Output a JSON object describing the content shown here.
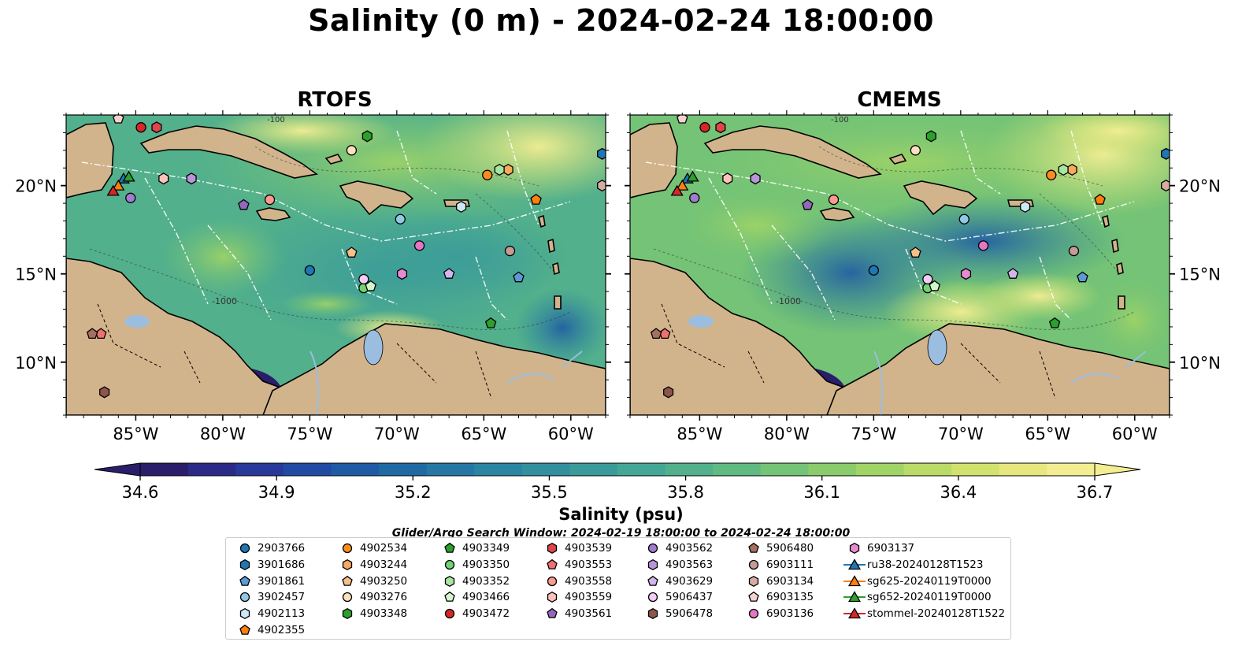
{
  "title": "Salinity (0 m) - 2024-02-24 18:00:00",
  "panels": [
    {
      "title": "RTOFS"
    },
    {
      "title": "CMEMS"
    }
  ],
  "lon_ticks": [
    "85°W",
    "80°W",
    "75°W",
    "70°W",
    "65°W",
    "60°W"
  ],
  "lat_ticks": [
    "20°N",
    "15°N",
    "10°N"
  ],
  "contour_labels": [
    "-100",
    "-1000"
  ],
  "colorbar": {
    "label": "Salinity (psu)",
    "ticks": [
      "34.6",
      "34.9",
      "35.2",
      "35.5",
      "35.8",
      "36.1",
      "36.4",
      "36.7"
    ],
    "range": [
      34.6,
      36.7
    ],
    "colors": [
      "#2a1d6a",
      "#2b2a86",
      "#28399a",
      "#214aa3",
      "#1f5aa4",
      "#206aa4",
      "#2677a3",
      "#2b84a1",
      "#32909e",
      "#3a9b9a",
      "#44a694",
      "#52b08c",
      "#61ba82",
      "#74c376",
      "#8acc6b",
      "#a1d466",
      "#badb67",
      "#d2e26f",
      "#e6e87f",
      "#f4ee93"
    ]
  },
  "search_window": "Glider/Argo Search Window: 2024-02-19 18:00:00 to 2024-02-24 18:00:00",
  "legend": [
    {
      "label": "2903766",
      "marker": "circle",
      "color": "#1f77b4"
    },
    {
      "label": "3901686",
      "marker": "hexagon",
      "color": "#1f77b4"
    },
    {
      "label": "3901861",
      "marker": "pentagon",
      "color": "#5b9bd5"
    },
    {
      "label": "3902457",
      "marker": "circle",
      "color": "#8ecae6"
    },
    {
      "label": "4902113",
      "marker": "hexagon",
      "color": "#cde7f5"
    },
    {
      "label": "4902355",
      "marker": "pentagon",
      "color": "#ff7f0e"
    },
    {
      "label": "4902534",
      "marker": "circle",
      "color": "#ff8c1a"
    },
    {
      "label": "4903244",
      "marker": "hexagon",
      "color": "#f9a95e"
    },
    {
      "label": "4903250",
      "marker": "pentagon",
      "color": "#f7c08a"
    },
    {
      "label": "4903276",
      "marker": "circle",
      "color": "#fde0c0"
    },
    {
      "label": "4903348",
      "marker": "hexagon",
      "color": "#2ca02c"
    },
    {
      "label": "4903349",
      "marker": "pentagon",
      "color": "#2ca02c"
    },
    {
      "label": "4903350",
      "marker": "circle",
      "color": "#6fd46f"
    },
    {
      "label": "4903352",
      "marker": "hexagon",
      "color": "#a8e6a0"
    },
    {
      "label": "4903466",
      "marker": "pentagon",
      "color": "#d4f5cc"
    },
    {
      "label": "4903472",
      "marker": "circle",
      "color": "#d62728"
    },
    {
      "label": "4903539",
      "marker": "hexagon",
      "color": "#e0454a"
    },
    {
      "label": "4903553",
      "marker": "pentagon",
      "color": "#f07070"
    },
    {
      "label": "4903558",
      "marker": "circle",
      "color": "#fb9a8f"
    },
    {
      "label": "4903559",
      "marker": "hexagon",
      "color": "#fdc2b8"
    },
    {
      "label": "4903561",
      "marker": "pentagon",
      "color": "#9467bd"
    },
    {
      "label": "4903562",
      "marker": "circle",
      "color": "#a07ccf"
    },
    {
      "label": "4903563",
      "marker": "hexagon",
      "color": "#b894d8"
    },
    {
      "label": "4903629",
      "marker": "pentagon",
      "color": "#d2b5ec"
    },
    {
      "label": "5906437",
      "marker": "circle",
      "color": "#f0cdf5"
    },
    {
      "label": "5906478",
      "marker": "hexagon",
      "color": "#8c564b"
    },
    {
      "label": "5906480",
      "marker": "pentagon",
      "color": "#a5705f"
    },
    {
      "label": "6903111",
      "marker": "circle",
      "color": "#c49c94"
    },
    {
      "label": "6903134",
      "marker": "hexagon",
      "color": "#d7aca0"
    },
    {
      "label": "6903135",
      "marker": "pentagon",
      "color": "#f3d3d0"
    },
    {
      "label": "6903136",
      "marker": "circle",
      "color": "#e377c2"
    },
    {
      "label": "6903137",
      "marker": "hexagon",
      "color": "#e98ad0"
    },
    {
      "label": "ru38-20240128T1523",
      "marker": "triangle-line",
      "color": "#1f77b4"
    },
    {
      "label": "sg625-20240119T0000",
      "marker": "triangle-line",
      "color": "#ff7f0e"
    },
    {
      "label": "sg652-20240119T0000",
      "marker": "triangle-line",
      "color": "#2ca02c"
    },
    {
      "label": "stommel-20240128T1522",
      "marker": "triangle-line",
      "color": "#d62728"
    }
  ],
  "map_extent": {
    "lon": [
      -89,
      -58
    ],
    "lat": [
      7,
      24
    ]
  },
  "floats": [
    {
      "id": "2903766",
      "lon": -75.0,
      "lat": 15.2
    },
    {
      "id": "3901686",
      "lon": -58.2,
      "lat": 21.8
    },
    {
      "id": "3901861",
      "lon": -63.0,
      "lat": 14.8
    },
    {
      "id": "3902457",
      "lon": -69.8,
      "lat": 18.1
    },
    {
      "id": "4902113",
      "lon": -66.3,
      "lat": 18.8
    },
    {
      "id": "4902355",
      "lon": -62.0,
      "lat": 19.2
    },
    {
      "id": "4902534",
      "lon": -64.8,
      "lat": 20.6
    },
    {
      "id": "4903244",
      "lon": -63.6,
      "lat": 20.9
    },
    {
      "id": "4903250",
      "lon": -72.6,
      "lat": 16.2
    },
    {
      "id": "4903276",
      "lon": -72.6,
      "lat": 22.0
    },
    {
      "id": "4903348",
      "lon": -71.7,
      "lat": 22.8
    },
    {
      "id": "4903349",
      "lon": -64.6,
      "lat": 12.2
    },
    {
      "id": "4903350",
      "lon": -71.9,
      "lat": 14.2
    },
    {
      "id": "4903352",
      "lon": -64.1,
      "lat": 20.9
    },
    {
      "id": "4903466",
      "lon": -71.5,
      "lat": 14.3
    },
    {
      "id": "4903472",
      "lon": -84.7,
      "lat": 23.3
    },
    {
      "id": "4903539",
      "lon": -83.8,
      "lat": 23.3
    },
    {
      "id": "4903553",
      "lon": -87.0,
      "lat": 11.6
    },
    {
      "id": "4903558",
      "lon": -77.3,
      "lat": 19.2
    },
    {
      "id": "4903559",
      "lon": -83.4,
      "lat": 20.4
    },
    {
      "id": "4903561",
      "lon": -78.8,
      "lat": 18.9
    },
    {
      "id": "4903562",
      "lon": -85.3,
      "lat": 19.3
    },
    {
      "id": "4903563",
      "lon": -81.8,
      "lat": 20.4
    },
    {
      "id": "4903629",
      "lon": -67.0,
      "lat": 15.0
    },
    {
      "id": "5906437",
      "lon": -71.9,
      "lat": 14.7
    },
    {
      "id": "5906478",
      "lon": -86.8,
      "lat": 8.3
    },
    {
      "id": "5906480",
      "lon": -87.5,
      "lat": 11.6
    },
    {
      "id": "6903111",
      "lon": -63.5,
      "lat": 16.3
    },
    {
      "id": "6903134",
      "lon": -58.2,
      "lat": 20.0
    },
    {
      "id": "6903135",
      "lon": -86.0,
      "lat": 23.8
    },
    {
      "id": "6903136",
      "lon": -68.7,
      "lat": 16.6
    },
    {
      "id": "6903137",
      "lon": -69.7,
      "lat": 15.0
    }
  ],
  "gliders": [
    {
      "id": "ru38-20240128T1523",
      "lon": -85.7,
      "lat": 20.4
    },
    {
      "id": "sg625-20240119T0000",
      "lon": -86.0,
      "lat": 20.0
    },
    {
      "id": "sg652-20240119T0000",
      "lon": -85.4,
      "lat": 20.5
    },
    {
      "id": "stommel-20240128T1522",
      "lon": -86.3,
      "lat": 19.7
    }
  ]
}
